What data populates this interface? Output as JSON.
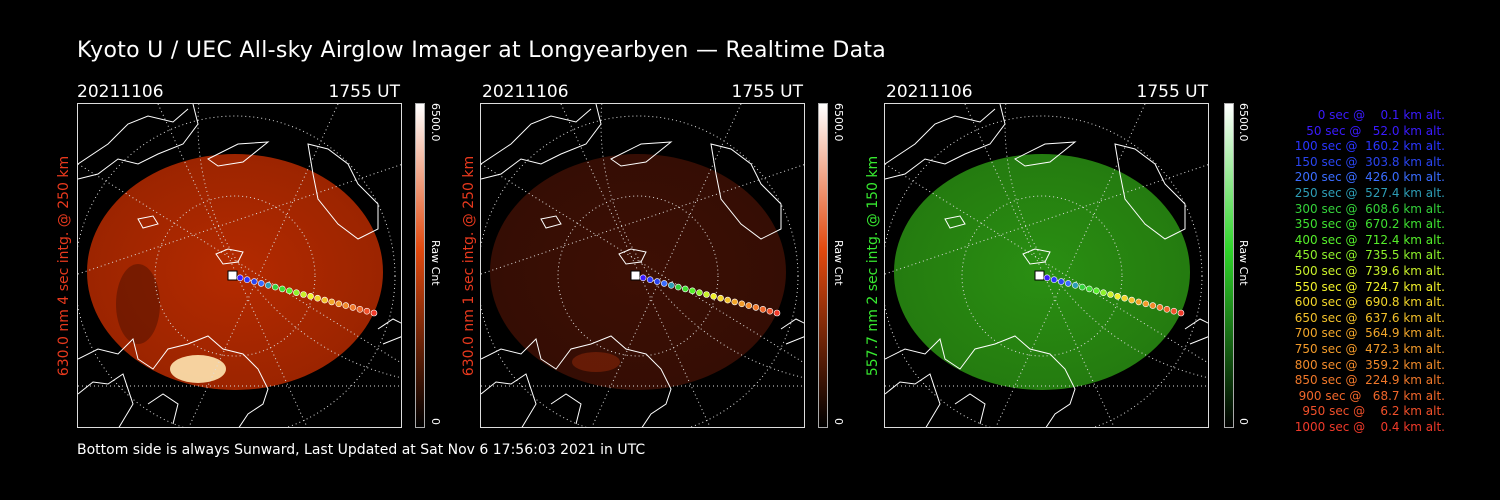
{
  "title": "Kyoto U / UEC All-sky Airglow Imager at Longyearbyen — Realtime Data",
  "panels": [
    {
      "date": "20211106",
      "time": "1755 UT",
      "side_label": "630.0 nm 4 sec intg. @ 250 km",
      "label_color": "#e8391d",
      "colorbar": {
        "max": "6500.0",
        "unit": "Raw Cnt",
        "min": "0",
        "color": "#e24a0f"
      },
      "disk_color": "#b42a00"
    },
    {
      "date": "20211106",
      "time": "1755 UT",
      "side_label": "630.0 nm 1 sec intg. @ 250 km",
      "label_color": "#e8391d",
      "colorbar": {
        "max": "6500.0",
        "unit": "Raw Cnt",
        "min": "0",
        "color": "#e24a0f"
      },
      "disk_color": "#3d0f04"
    },
    {
      "date": "20211106",
      "time": "1755 UT",
      "side_label": "557.7 nm 2 sec intg. @ 150 km",
      "label_color": "#37e830",
      "colorbar": {
        "max": "6500.0",
        "unit": "Raw Cnt",
        "min": "0",
        "color": "#2fd52a"
      },
      "disk_color": "#2a8f12"
    }
  ],
  "footer": "Bottom side is always Sunward, Last Updated at Sat Nov  6 17:56:03 2021 in UTC",
  "legend": [
    {
      "text": "0 sec @    0.1 km alt.",
      "color": "#3b1bff"
    },
    {
      "text": "50 sec @   52.0 km alt.",
      "color": "#3b1bff"
    },
    {
      "text": "100 sec @  160.2 km alt.",
      "color": "#2a35ff"
    },
    {
      "text": "150 sec @  303.8 km alt.",
      "color": "#2a45f0"
    },
    {
      "text": "200 sec @  426.0 km alt.",
      "color": "#3a6cff"
    },
    {
      "text": "250 sec @  527.4 km alt.",
      "color": "#2d9db5"
    },
    {
      "text": "300 sec @  608.6 km alt.",
      "color": "#34d13a"
    },
    {
      "text": "350 sec @  670.2 km alt.",
      "color": "#3ee030"
    },
    {
      "text": "400 sec @  712.4 km alt.",
      "color": "#55ee2a"
    },
    {
      "text": "450 sec @  735.5 km alt.",
      "color": "#8df02a"
    },
    {
      "text": "500 sec @  739.6 km alt.",
      "color": "#c8f02a"
    },
    {
      "text": "550 sec @  724.7 km alt.",
      "color": "#f0f02a"
    },
    {
      "text": "600 sec @  690.8 km alt.",
      "color": "#f2d52a"
    },
    {
      "text": "650 sec @  637.6 km alt.",
      "color": "#f2c02a"
    },
    {
      "text": "700 sec @  564.9 km alt.",
      "color": "#f2a62a"
    },
    {
      "text": "750 sec @  472.3 km alt.",
      "color": "#f29a2a"
    },
    {
      "text": "800 sec @  359.2 km alt.",
      "color": "#f08a2a"
    },
    {
      "text": "850 sec @  224.9 km alt.",
      "color": "#f0782a"
    },
    {
      "text": "900 sec @   68.7 km alt.",
      "color": "#f0662a"
    },
    {
      "text": "950 sec @    6.2 km alt.",
      "color": "#f0502a"
    },
    {
      "text": "1000 sec @    0.4 km alt.",
      "color": "#f03a2a"
    }
  ]
}
